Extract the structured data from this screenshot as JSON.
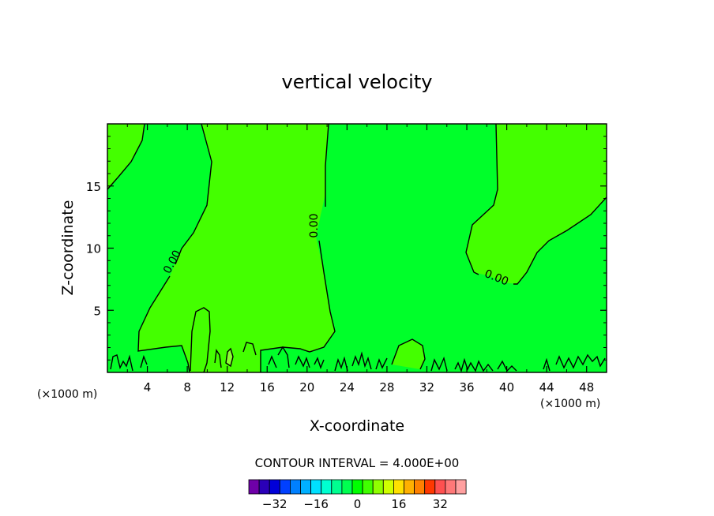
{
  "chart_data": {
    "type": "contour",
    "title": "vertical velocity",
    "xlabel": "X-coordinate",
    "ylabel": "Z-coordinate",
    "xunit_left": "(×1000 m)",
    "xunit_right": "(×1000 m)",
    "xlim": [
      0,
      50
    ],
    "ylim": [
      0,
      20
    ],
    "xticks": [
      4,
      8,
      12,
      16,
      20,
      24,
      28,
      32,
      36,
      40,
      44,
      48
    ],
    "yticks": [
      5,
      10,
      15
    ],
    "contour_label": "0.00",
    "contour_interval_text": "CONTOUR INTERVAL = 4.000E+00",
    "colorbar": {
      "colors": [
        "#6e00a8",
        "#2a00b8",
        "#0000d8",
        "#0040ff",
        "#0080ff",
        "#00b0ff",
        "#00e0ff",
        "#00ffd0",
        "#00ff90",
        "#00ff50",
        "#00ff00",
        "#40ff00",
        "#90ff00",
        "#d0ff00",
        "#ffe000",
        "#ffb000",
        "#ff8000",
        "#ff3800",
        "#ff5050",
        "#ff7878",
        "#ffa0a0"
      ],
      "tick_labels": [
        "-32",
        "-16",
        "0",
        "16",
        "32"
      ],
      "tick_values": [
        -32,
        -16,
        0,
        16,
        32
      ]
    },
    "fill_colors": {
      "background": "#00ff2a",
      "positive": "#44ff00",
      "max_patch": "#88ff30"
    }
  }
}
